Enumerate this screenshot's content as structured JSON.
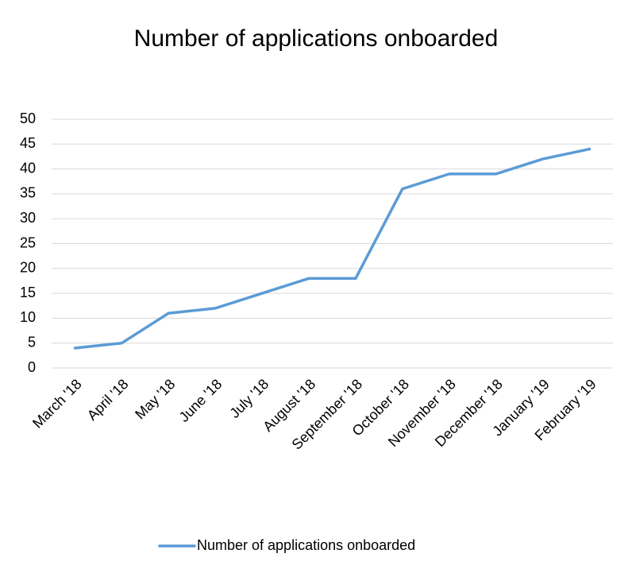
{
  "chart_data": {
    "type": "line",
    "title": "Number of applications onboarded",
    "categories": [
      "March '18",
      "April '18",
      "May '18",
      "June '18",
      "July '18",
      "August '18",
      "September '18",
      "October '18",
      "November '18",
      "December '18",
      "January '19",
      "February '19"
    ],
    "series": [
      {
        "name": "Number of applications onboarded",
        "color": "#5b9bd5",
        "values": [
          4,
          5,
          11,
          12,
          15,
          18,
          18,
          36,
          39,
          39,
          42,
          44
        ]
      }
    ],
    "ylim": [
      0,
      50
    ],
    "yticks": [
      0,
      5,
      10,
      15,
      20,
      25,
      30,
      35,
      40,
      45,
      50
    ],
    "grid": true,
    "legend": "bottom"
  }
}
